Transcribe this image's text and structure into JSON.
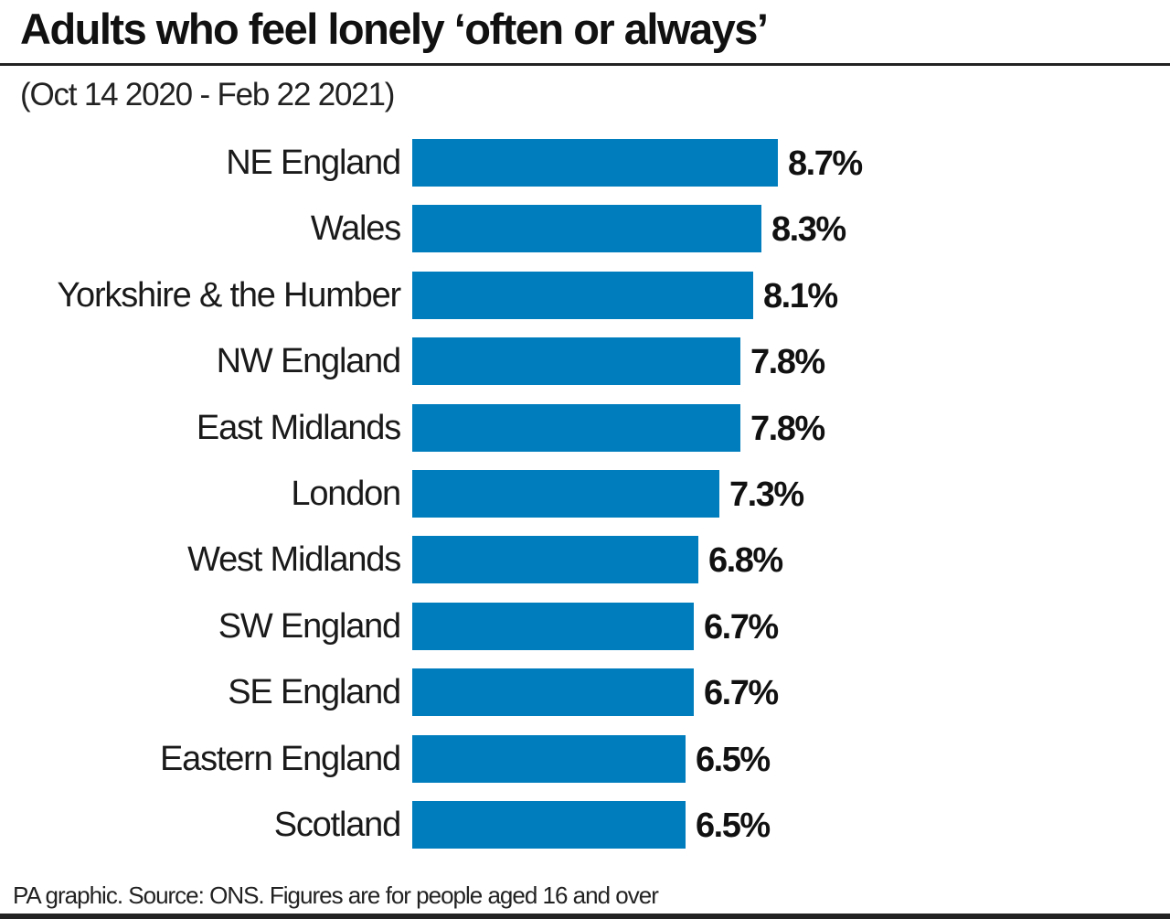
{
  "header": {
    "title": "Adults who feel lonely ‘often or always’",
    "subtitle": "(Oct 14 2020 - Feb 22 2021)"
  },
  "footer": {
    "source": "PA graphic. Source: ONS. Figures are for people aged 16 and over"
  },
  "colors": {
    "bar": "#007dbd",
    "text": "#111111",
    "rule": "#222222"
  },
  "chart_data": {
    "type": "bar",
    "orientation": "horizontal",
    "title": "Adults who feel lonely ‘often or always’",
    "subtitle": "(Oct 14 2020 - Feb 22 2021)",
    "xlabel": "",
    "ylabel": "",
    "unit": "%",
    "grid": false,
    "legend": null,
    "categories": [
      "NE England",
      "Wales",
      "Yorkshire & the Humber",
      "NW England",
      "East Midlands",
      "London",
      "West Midlands",
      "SW England",
      "SE England",
      "Eastern England",
      "Scotland"
    ],
    "values": [
      8.7,
      8.3,
      8.1,
      7.8,
      7.8,
      7.3,
      6.8,
      6.7,
      6.7,
      6.5,
      6.5
    ],
    "value_labels": [
      "8.7%",
      "8.3%",
      "8.1%",
      "7.8%",
      "7.8%",
      "7.3%",
      "6.8%",
      "6.7%",
      "6.7%",
      "6.5%",
      "6.5%"
    ],
    "source": "PA graphic. Source: ONS. Figures are for people aged 16 and over"
  }
}
